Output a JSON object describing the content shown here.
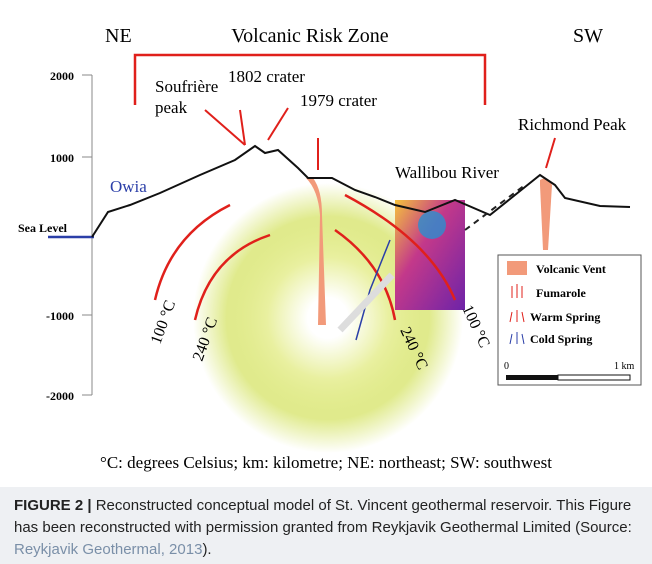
{
  "figure": {
    "labels": {
      "ne": "NE",
      "zone": "Volcanic Risk Zone",
      "sw": "SW",
      "soufriere": "Soufrière",
      "peak": "peak",
      "c1802": "1802 crater",
      "c1979": "1979 crater",
      "owia": "Owia",
      "wallibou": "Wallibou River",
      "richmond": "Richmond Peak",
      "t100a": "100 °C",
      "t240a": "240 °C",
      "t240b": "240 °C",
      "t100b": "100 °C"
    },
    "axis": {
      "y2000": "2000",
      "y1000": "1000",
      "sea": "Sea Level",
      "ym1000": "-1000",
      "ym2000": "-2000"
    },
    "legend": {
      "vent": "Volcanic Vent",
      "fumarole": "Fumarole",
      "warm": "Warm Spring",
      "cold": "Cold Spring",
      "zero": "0",
      "km": "1 km"
    },
    "footnote": "°C: degrees Celsius; km: kilometre; NE: northeast; SW: southwest"
  },
  "caption": {
    "label": "FIGURE 2 |",
    "text": "Reconstructed conceptual model of St. Vincent geothermal reservoir. This Figure has been reconstructed with permission granted from Reykjavik Geothermal Limited (Source: ",
    "link": "Reykjavik Geothermal, 2013",
    "end": ")."
  }
}
